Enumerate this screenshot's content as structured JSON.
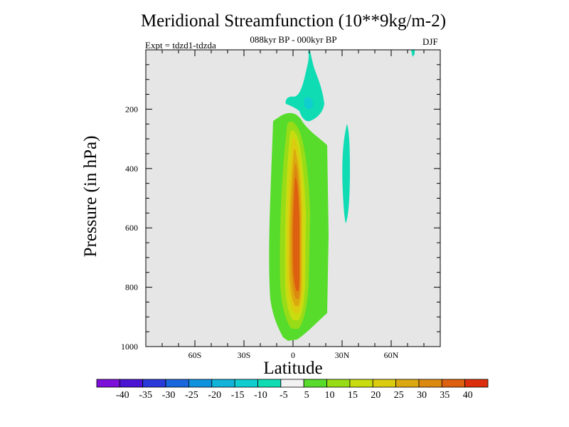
{
  "chart_data": {
    "type": "heatmap",
    "title": "Meridional Streamfunction (10**9kg/m-2)",
    "subtitle": "088kyr BP - 000kyr BP",
    "experiment_label": "Expt = tdzd1-tdzda",
    "season": "DJF",
    "xlabel": "Latitude",
    "ylabel": "Pressure (in hPa)",
    "xlim": [
      -90,
      90
    ],
    "ylim": [
      1000,
      0
    ],
    "y_inverted": true,
    "x_ticks": [
      {
        "value": -60,
        "label": "60S"
      },
      {
        "value": -30,
        "label": "30S"
      },
      {
        "value": 0,
        "label": "0"
      },
      {
        "value": 30,
        "label": "30N"
      },
      {
        "value": 60,
        "label": "60N"
      }
    ],
    "y_ticks": [
      {
        "value": 200,
        "label": "200"
      },
      {
        "value": 400,
        "label": "400"
      },
      {
        "value": 600,
        "label": "600"
      },
      {
        "value": 800,
        "label": "800"
      },
      {
        "value": 1000,
        "label": "1000"
      }
    ],
    "contour_levels": [
      -40,
      -35,
      -30,
      -25,
      -20,
      -15,
      -10,
      -5,
      5,
      10,
      15,
      20,
      25,
      30,
      35,
      40
    ],
    "colorbar_labels": [
      "-40",
      "-35",
      "-30",
      "-25",
      "-20",
      "-15",
      "-10",
      "-5",
      "5",
      "10",
      "15",
      "20",
      "25",
      "30",
      "35",
      "40"
    ],
    "colorbar_colors": [
      "#7c0fd8",
      "#4a14d2",
      "#2a3ad8",
      "#1a66dd",
      "#0f92dd",
      "#0fb4d8",
      "#10cdd0",
      "#10dcb4",
      "#f2f2f2",
      "#57dc2c",
      "#98dc18",
      "#c8dc10",
      "#dccc10",
      "#dca80f",
      "#dc8a0f",
      "#dc600f",
      "#dc2e0c"
    ],
    "background_color": "#e6e6e6",
    "positive_cell": {
      "center_lat": 0,
      "core_pressure": 640,
      "max_value": 40,
      "extent_lat": [
        -12,
        22
      ],
      "extent_pressure": [
        220,
        1000
      ]
    },
    "negative_features": [
      {
        "lat_range": [
          -4,
          12
        ],
        "pressure_range": [
          0,
          250
        ],
        "min_value": -10
      },
      {
        "lat_range": [
          30,
          35
        ],
        "pressure_range": [
          250,
          590
        ],
        "min_value": -10
      }
    ]
  }
}
